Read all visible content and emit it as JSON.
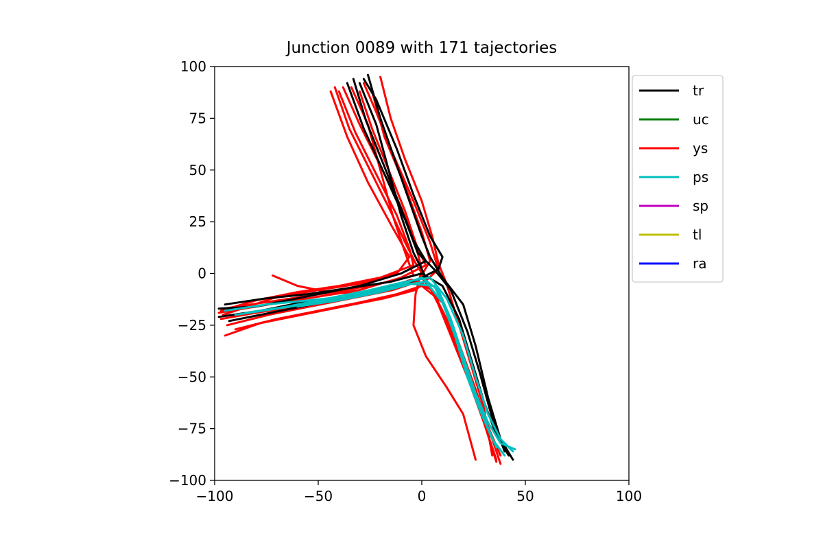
{
  "chart_data": {
    "type": "line",
    "title": "Junction 0089 with 171 tajectories",
    "xlabel": "",
    "ylabel": "",
    "xlim": [
      -100,
      100
    ],
    "ylim": [
      -100,
      100
    ],
    "xticks": [
      -100,
      -50,
      0,
      50,
      100
    ],
    "yticks": [
      100,
      75,
      50,
      25,
      0,
      -25,
      -50,
      -75,
      -100
    ],
    "xtick_labels": [
      "−100",
      "−50",
      "0",
      "50",
      "100"
    ],
    "ytick_labels": [
      "100",
      "75",
      "50",
      "25",
      "0",
      "−25",
      "−50",
      "−75",
      "−100"
    ],
    "grid": false,
    "legend_position": "outside-right-top",
    "legend": [
      {
        "label": "tr",
        "color": "#000000"
      },
      {
        "label": "uc",
        "color": "#008000"
      },
      {
        "label": "ys",
        "color": "#ff0000"
      },
      {
        "label": "ps",
        "color": "#00bfbf"
      },
      {
        "label": "sp",
        "color": "#bf00bf"
      },
      {
        "label": "tl",
        "color": "#bfbf00"
      },
      {
        "label": "ra",
        "color": "#0000ff"
      }
    ],
    "series": [
      {
        "name": "ys",
        "color": "#ff0000",
        "points": [
          [
            -42,
            90
          ],
          [
            -35,
            70
          ],
          [
            -25,
            50
          ],
          [
            -15,
            30
          ],
          [
            -8,
            15
          ],
          [
            -3,
            5
          ],
          [
            2,
            -3
          ],
          [
            8,
            -15
          ],
          [
            16,
            -35
          ],
          [
            24,
            -55
          ],
          [
            30,
            -72
          ],
          [
            36,
            -90
          ]
        ]
      },
      {
        "name": "ys",
        "color": "#ff0000",
        "points": [
          [
            -40,
            88
          ],
          [
            -32,
            68
          ],
          [
            -22,
            48
          ],
          [
            -12,
            28
          ],
          [
            -6,
            12
          ],
          [
            -4,
            4
          ],
          [
            -20,
            -2
          ],
          [
            -40,
            -6
          ],
          [
            -60,
            -9
          ],
          [
            -80,
            -13
          ],
          [
            -97,
            -18
          ]
        ]
      },
      {
        "name": "ys",
        "color": "#ff0000",
        "points": [
          [
            -97,
            -22
          ],
          [
            -80,
            -19
          ],
          [
            -60,
            -16
          ],
          [
            -40,
            -13
          ],
          [
            -20,
            -8
          ],
          [
            -5,
            -3
          ],
          [
            5,
            -8
          ],
          [
            12,
            -22
          ],
          [
            20,
            -42
          ],
          [
            28,
            -62
          ],
          [
            34,
            -80
          ],
          [
            38,
            -92
          ]
        ]
      },
      {
        "name": "ys",
        "color": "#ff0000",
        "points": [
          [
            -95,
            -30
          ],
          [
            -78,
            -24
          ],
          [
            -58,
            -20
          ],
          [
            -38,
            -16
          ],
          [
            -18,
            -12
          ],
          [
            -3,
            -8
          ],
          [
            8,
            2
          ],
          [
            4,
            15
          ],
          [
            -4,
            35
          ],
          [
            -14,
            58
          ],
          [
            -22,
            78
          ],
          [
            -28,
            92
          ]
        ]
      },
      {
        "name": "ys",
        "color": "#ff0000",
        "points": [
          [
            -38,
            90
          ],
          [
            -30,
            72
          ],
          [
            -20,
            52
          ],
          [
            -10,
            32
          ],
          [
            -3,
            14
          ],
          [
            0,
            2
          ],
          [
            -3,
            -10
          ],
          [
            -4,
            -25
          ],
          [
            2,
            -40
          ],
          [
            12,
            -55
          ],
          [
            20,
            -68
          ],
          [
            26,
            -90
          ]
        ]
      },
      {
        "name": "ys",
        "color": "#ff0000",
        "points": [
          [
            -44,
            88
          ],
          [
            -36,
            66
          ],
          [
            -26,
            44
          ],
          [
            -14,
            22
          ],
          [
            -6,
            8
          ],
          [
            -12,
            0
          ],
          [
            -30,
            -5
          ],
          [
            -50,
            -8
          ],
          [
            -72,
            -12
          ],
          [
            -96,
            -20
          ]
        ]
      },
      {
        "name": "ys",
        "color": "#ff0000",
        "points": [
          [
            -96,
            -17
          ],
          [
            -76,
            -14
          ],
          [
            -56,
            -11
          ],
          [
            -36,
            -8
          ],
          [
            -16,
            -4
          ],
          [
            -4,
            -1
          ],
          [
            -8,
            10
          ],
          [
            -14,
            28
          ],
          [
            -20,
            50
          ],
          [
            -26,
            72
          ],
          [
            -34,
            90
          ]
        ]
      },
      {
        "name": "ys",
        "color": "#ff0000",
        "points": [
          [
            -90,
            -27
          ],
          [
            -70,
            -22
          ],
          [
            -50,
            -18
          ],
          [
            -30,
            -14
          ],
          [
            -12,
            -10
          ],
          [
            0,
            -6
          ],
          [
            10,
            -14
          ],
          [
            18,
            -34
          ],
          [
            26,
            -56
          ],
          [
            32,
            -74
          ],
          [
            38,
            -88
          ]
        ]
      },
      {
        "name": "ys",
        "color": "#ff0000",
        "points": [
          [
            -20,
            95
          ],
          [
            -15,
            75
          ],
          [
            -8,
            55
          ],
          [
            0,
            35
          ],
          [
            5,
            18
          ],
          [
            8,
            5
          ],
          [
            12,
            -5
          ],
          [
            18,
            -25
          ],
          [
            24,
            -45
          ],
          [
            30,
            -65
          ],
          [
            34,
            -88
          ]
        ]
      },
      {
        "name": "ys",
        "color": "#ff0000",
        "points": [
          [
            -72,
            -1
          ],
          [
            -60,
            -6
          ],
          [
            -45,
            -9
          ],
          [
            -25,
            -10
          ],
          [
            -8,
            -6
          ],
          [
            0,
            -2
          ],
          [
            6,
            -10
          ],
          [
            14,
            -28
          ],
          [
            22,
            -50
          ],
          [
            30,
            -72
          ],
          [
            36,
            -91
          ]
        ]
      },
      {
        "name": "ys",
        "color": "#ff0000",
        "points": [
          [
            -30,
            88
          ],
          [
            -24,
            70
          ],
          [
            -16,
            50
          ],
          [
            -8,
            30
          ],
          [
            -2,
            12
          ],
          [
            2,
            4
          ],
          [
            -10,
            -2
          ],
          [
            -30,
            -8
          ],
          [
            -55,
            -12
          ],
          [
            -80,
            -16
          ],
          [
            -98,
            -19
          ]
        ]
      },
      {
        "name": "ys",
        "color": "#ff0000",
        "points": [
          [
            -94,
            -25
          ],
          [
            -74,
            -20
          ],
          [
            -54,
            -16
          ],
          [
            -34,
            -12
          ],
          [
            -14,
            -8
          ],
          [
            -2,
            -4
          ],
          [
            4,
            6
          ],
          [
            0,
            20
          ],
          [
            -8,
            42
          ],
          [
            -18,
            66
          ],
          [
            -24,
            88
          ]
        ]
      },
      {
        "name": "tr",
        "color": "#000000",
        "points": [
          [
            -26,
            96
          ],
          [
            -20,
            75
          ],
          [
            -13,
            55
          ],
          [
            -6,
            35
          ],
          [
            0,
            18
          ],
          [
            4,
            8
          ],
          [
            10,
            -2
          ],
          [
            20,
            -15
          ],
          [
            26,
            -35
          ],
          [
            32,
            -60
          ],
          [
            38,
            -80
          ],
          [
            44,
            -90
          ]
        ]
      },
      {
        "name": "tr",
        "color": "#000000",
        "points": [
          [
            -33,
            94
          ],
          [
            -27,
            74
          ],
          [
            -19,
            54
          ],
          [
            -11,
            34
          ],
          [
            -4,
            16
          ],
          [
            2,
            6
          ],
          [
            -10,
            0
          ],
          [
            -30,
            -6
          ],
          [
            -55,
            -11
          ],
          [
            -80,
            -16
          ],
          [
            -98,
            -17
          ]
        ]
      },
      {
        "name": "tr",
        "color": "#000000",
        "points": [
          [
            -98,
            -21
          ],
          [
            -78,
            -18
          ],
          [
            -58,
            -14
          ],
          [
            -38,
            -11
          ],
          [
            -18,
            -7
          ],
          [
            -2,
            -3
          ],
          [
            8,
            2
          ],
          [
            10,
            8
          ],
          [
            4,
            18
          ],
          [
            -4,
            38
          ],
          [
            -12,
            60
          ],
          [
            -22,
            84
          ],
          [
            -28,
            94
          ]
        ]
      },
      {
        "name": "tr",
        "color": "#000000",
        "points": [
          [
            -95,
            -15
          ],
          [
            -75,
            -12
          ],
          [
            -55,
            -10
          ],
          [
            -35,
            -7
          ],
          [
            -15,
            -4
          ],
          [
            0,
            0
          ],
          [
            10,
            -6
          ],
          [
            18,
            -22
          ],
          [
            24,
            -42
          ],
          [
            30,
            -62
          ],
          [
            36,
            -78
          ],
          [
            42,
            -88
          ]
        ]
      },
      {
        "name": "tr",
        "color": "#000000",
        "points": [
          [
            -36,
            92
          ],
          [
            -28,
            70
          ],
          [
            -18,
            48
          ],
          [
            -8,
            26
          ],
          [
            -2,
            10
          ],
          [
            6,
            2
          ],
          [
            14,
            -8
          ],
          [
            22,
            -28
          ],
          [
            28,
            -48
          ],
          [
            34,
            -70
          ],
          [
            40,
            -86
          ]
        ]
      },
      {
        "name": "tr",
        "color": "#000000",
        "points": [
          [
            -93,
            -23
          ],
          [
            -73,
            -19
          ],
          [
            -53,
            -15
          ],
          [
            -33,
            -11
          ],
          [
            -13,
            -6
          ],
          [
            2,
            -2
          ],
          [
            -4,
            10
          ],
          [
            -10,
            28
          ],
          [
            -16,
            50
          ],
          [
            -22,
            72
          ],
          [
            -30,
            92
          ]
        ]
      },
      {
        "name": "ps",
        "color": "#00bfbf",
        "points": [
          [
            -95,
            -18
          ],
          [
            -75,
            -15
          ],
          [
            -55,
            -13
          ],
          [
            -35,
            -11
          ],
          [
            -15,
            -7
          ],
          [
            0,
            -2
          ],
          [
            8,
            -8
          ],
          [
            14,
            -22
          ],
          [
            20,
            -40
          ],
          [
            26,
            -58
          ],
          [
            32,
            -72
          ],
          [
            38,
            -82
          ],
          [
            45,
            -85
          ]
        ]
      },
      {
        "name": "ps",
        "color": "#00bfbf",
        "points": [
          [
            -90,
            -20
          ],
          [
            -70,
            -17
          ],
          [
            -50,
            -14
          ],
          [
            -30,
            -10
          ],
          [
            -12,
            -6
          ],
          [
            2,
            -4
          ],
          [
            10,
            -14
          ],
          [
            16,
            -30
          ],
          [
            22,
            -50
          ],
          [
            28,
            -66
          ],
          [
            34,
            -80
          ],
          [
            40,
            -88
          ]
        ]
      },
      {
        "name": "ps",
        "color": "#00bfbf",
        "points": [
          [
            -60,
            -16
          ],
          [
            -40,
            -13
          ],
          [
            -20,
            -9
          ],
          [
            -5,
            -5
          ],
          [
            6,
            -6
          ],
          [
            12,
            -18
          ],
          [
            18,
            -36
          ],
          [
            24,
            -54
          ],
          [
            30,
            -70
          ],
          [
            36,
            -84
          ]
        ]
      },
      {
        "name": "ps",
        "color": "#00bfbf",
        "points": [
          [
            -85,
            -19
          ],
          [
            -65,
            -16
          ],
          [
            -45,
            -12
          ],
          [
            -25,
            -8
          ],
          [
            -8,
            -4
          ],
          [
            4,
            -2
          ],
          [
            12,
            -12
          ],
          [
            20,
            -30
          ],
          [
            26,
            -50
          ],
          [
            32,
            -68
          ],
          [
            38,
            -80
          ],
          [
            44,
            -86
          ]
        ]
      }
    ]
  }
}
